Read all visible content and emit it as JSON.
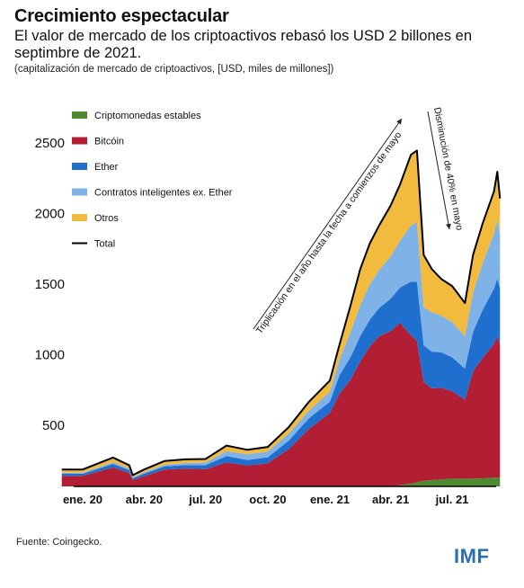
{
  "title": "Crecimiento espectacular",
  "subtitle": "El valor de mercado de los criptoactivos rebasó los USD 2 billones en septimbre de 2021.",
  "units_note": "(capitalización de mercado de criptoactivos, [USD, miles de millones])",
  "source": "Fuente: Coingecko.",
  "logo_text": "IMF",
  "annotations": {
    "up": "Triplicación en el año hasta la fecha a comienzos de mayo",
    "down": "Disminución de 40% en mayo"
  },
  "chart_data": {
    "type": "area",
    "stacked": true,
    "x_tick_labels": [
      "ene. 20",
      "abr. 20",
      "jul. 20",
      "oct. 20",
      "ene. 21",
      "abr. 21",
      "jul. 21"
    ],
    "x": [
      "2019-12-01",
      "2020-01-01",
      "2020-02-15",
      "2020-03-10",
      "2020-03-15",
      "2020-04-01",
      "2020-05-01",
      "2020-06-01",
      "2020-07-01",
      "2020-08-01",
      "2020-09-01",
      "2020-10-01",
      "2020-11-01",
      "2020-12-01",
      "2021-01-01",
      "2021-01-15",
      "2021-02-01",
      "2021-02-15",
      "2021-03-01",
      "2021-03-15",
      "2021-04-01",
      "2021-04-15",
      "2021-05-01",
      "2021-05-10",
      "2021-05-20",
      "2021-06-01",
      "2021-06-15",
      "2021-07-01",
      "2021-07-20",
      "2021-08-01",
      "2021-08-15",
      "2021-09-01",
      "2021-09-06",
      "2021-09-10"
    ],
    "ylim": [
      0,
      2700
    ],
    "y_ticks": [
      500,
      1000,
      1500,
      2000,
      2500
    ],
    "legend_position": "top-left",
    "grid": false,
    "series": [
      {
        "name": "Criptomonedas estables",
        "color": "#4e8a2f",
        "values": [
          5,
          5,
          5,
          6,
          6,
          8,
          10,
          12,
          13,
          15,
          18,
          20,
          25,
          28,
          30,
          35,
          40,
          45,
          50,
          55,
          60,
          70,
          80,
          90,
          100,
          105,
          110,
          115,
          115,
          115,
          118,
          122,
          124,
          124
        ]
      },
      {
        "name": "Bitcóin",
        "color": "#b21f35",
        "values": [
          130,
          130,
          190,
          150,
          100,
          125,
          170,
          175,
          170,
          215,
          190,
          205,
          300,
          440,
          550,
          680,
          780,
          900,
          1000,
          1070,
          1100,
          1150,
          1050,
          1000,
          700,
          650,
          650,
          620,
          560,
          760,
          850,
          950,
          1000,
          940
        ]
      },
      {
        "name": "Ether",
        "color": "#1f6fce",
        "values": [
          15,
          15,
          25,
          20,
          12,
          18,
          22,
          25,
          28,
          45,
          40,
          42,
          60,
          75,
          80,
          130,
          160,
          180,
          190,
          200,
          230,
          250,
          380,
          420,
          260,
          260,
          250,
          240,
          220,
          280,
          340,
          390,
          410,
          400
        ]
      },
      {
        "name": "Contratos inteligentes ex. Ether",
        "color": "#7fb3e8",
        "values": [
          8,
          8,
          12,
          10,
          6,
          10,
          12,
          14,
          18,
          35,
          40,
          40,
          50,
          55,
          70,
          110,
          180,
          220,
          250,
          270,
          300,
          330,
          400,
          420,
          270,
          280,
          260,
          250,
          230,
          280,
          330,
          390,
          420,
          380
        ]
      },
      {
        "name": "Otros",
        "color": "#f2bb3e",
        "values": [
          22,
          22,
          33,
          24,
          16,
          19,
          26,
          26,
          26,
          40,
          32,
          33,
          45,
          62,
          80,
          105,
          190,
          255,
          290,
          315,
          360,
          400,
          500,
          510,
          370,
          305,
          260,
          255,
          235,
          265,
          282,
          298,
          336,
          256
        ]
      }
    ],
    "total": {
      "name": "Total",
      "color": "#000000",
      "values": [
        180,
        180,
        265,
        210,
        140,
        180,
        240,
        252,
        255,
        350,
        320,
        340,
        480,
        660,
        810,
        1060,
        1350,
        1600,
        1780,
        1910,
        2050,
        2200,
        2410,
        2440,
        1700,
        1600,
        1530,
        1480,
        1360,
        1700,
        1920,
        2150,
        2290,
        2100
      ]
    }
  }
}
